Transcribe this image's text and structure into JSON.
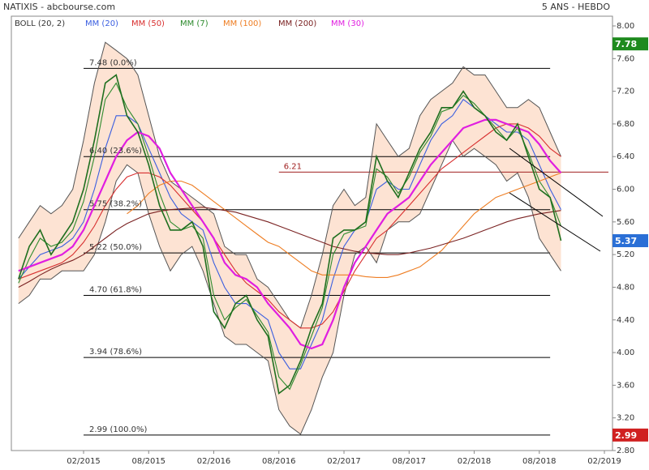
{
  "chart_data": {
    "type": "line",
    "title": "NATIXIS - abcbourse.com",
    "subtitle": "5 ANS - HEBDO",
    "x": [
      "08/2014",
      "09/2014",
      "10/2014",
      "11/2014",
      "12/2014",
      "01/2015",
      "02/2015",
      "03/2015",
      "04/2015",
      "05/2015",
      "06/2015",
      "07/2015",
      "08/2015",
      "09/2015",
      "10/2015",
      "11/2015",
      "12/2015",
      "01/2016",
      "02/2016",
      "03/2016",
      "04/2016",
      "05/2016",
      "06/2016",
      "07/2016",
      "08/2016",
      "09/2016",
      "10/2016",
      "11/2016",
      "12/2016",
      "01/2017",
      "02/2017",
      "03/2017",
      "04/2017",
      "05/2017",
      "06/2017",
      "07/2017",
      "08/2017",
      "09/2017",
      "10/2017",
      "11/2017",
      "12/2017",
      "01/2018",
      "02/2018",
      "03/2018",
      "04/2018",
      "05/2018",
      "06/2018",
      "07/2018",
      "08/2018",
      "09/2018",
      "10/2018"
    ],
    "xlim": [
      "07/2014",
      "03/2019"
    ],
    "xticks": [
      "02/2015",
      "08/2015",
      "02/2016",
      "08/2016",
      "02/2017",
      "08/2017",
      "02/2018",
      "08/2018",
      "02/2019"
    ],
    "ylim": [
      2.8,
      8
    ],
    "yticks": [
      {
        "value": 8,
        "label": "8.00"
      },
      {
        "value": 7.6,
        "label": "7.60"
      },
      {
        "value": 7.2,
        "label": "7.20"
      },
      {
        "value": 6.8,
        "label": "6.80"
      },
      {
        "value": 6.4,
        "label": "6.40"
      },
      {
        "value": 6,
        "label": "6.00"
      },
      {
        "value": 5.6,
        "label": "5.60"
      },
      {
        "value": 5.2,
        "label": "5.20"
      },
      {
        "value": 4.8,
        "label": "4.80"
      },
      {
        "value": 4.4,
        "label": "4.40"
      },
      {
        "value": 4,
        "label": "4.00"
      },
      {
        "value": 3.6,
        "label": "3.60"
      },
      {
        "value": 3.2,
        "label": "3.20"
      },
      {
        "value": 2.8,
        "label": "2.80"
      }
    ],
    "bollinger": {
      "name": "BOLL (20, 2)",
      "color": "#555555",
      "fill": "#fde3d3",
      "upper": [
        5.4,
        5.6,
        5.8,
        5.7,
        5.8,
        6.0,
        6.6,
        7.3,
        7.8,
        7.7,
        7.6,
        7.4,
        6.9,
        6.4,
        6.1,
        6.0,
        5.9,
        5.8,
        5.7,
        5.3,
        5.2,
        5.2,
        4.9,
        4.8,
        4.6,
        4.4,
        4.3,
        4.7,
        5.2,
        5.8,
        6.0,
        5.8,
        5.9,
        6.8,
        6.6,
        6.4,
        6.5,
        6.9,
        7.1,
        7.2,
        7.3,
        7.5,
        7.4,
        7.4,
        7.2,
        7.0,
        7.0,
        7.1,
        7.0,
        6.7,
        6.4
      ],
      "lower": [
        4.6,
        4.7,
        4.9,
        4.9,
        5.0,
        5.0,
        5.0,
        5.2,
        5.6,
        6.1,
        6.3,
        6.2,
        5.7,
        5.3,
        5.0,
        5.2,
        5.3,
        5.0,
        4.6,
        4.2,
        4.1,
        4.1,
        4.0,
        3.9,
        3.3,
        3.1,
        3.0,
        3.3,
        3.7,
        4.0,
        4.7,
        5.2,
        5.3,
        5.1,
        5.5,
        5.6,
        5.6,
        5.7,
        6.0,
        6.3,
        6.6,
        6.4,
        6.5,
        6.4,
        6.3,
        6.1,
        6.2,
        5.9,
        5.4,
        5.2,
        5.0
      ]
    },
    "series": [
      {
        "name": "MM (20)",
        "color": "#3a5ee0",
        "values": [
          4.9,
          5.05,
          5.2,
          5.25,
          5.3,
          5.4,
          5.6,
          6.0,
          6.5,
          6.9,
          6.9,
          6.8,
          6.5,
          6.2,
          5.9,
          5.7,
          5.6,
          5.5,
          5.1,
          4.8,
          4.6,
          4.6,
          4.5,
          4.4,
          4.0,
          3.8,
          3.8,
          4.1,
          4.4,
          4.9,
          5.3,
          5.5,
          5.6,
          6.0,
          6.1,
          6.0,
          6.0,
          6.3,
          6.6,
          6.8,
          6.9,
          7.1,
          7.0,
          6.9,
          6.8,
          6.7,
          6.7,
          6.6,
          6.3,
          6.0,
          5.75
        ]
      },
      {
        "name": "MM (50)",
        "color": "#d83030",
        "values": [
          4.9,
          4.95,
          5.0,
          5.05,
          5.1,
          5.2,
          5.35,
          5.55,
          5.8,
          6.0,
          6.15,
          6.2,
          6.2,
          6.15,
          6.05,
          5.9,
          5.75,
          5.6,
          5.4,
          5.2,
          5.0,
          4.85,
          4.75,
          4.65,
          4.5,
          4.4,
          4.3,
          4.3,
          4.35,
          4.5,
          4.75,
          5.0,
          5.2,
          5.4,
          5.5,
          5.65,
          5.8,
          5.95,
          6.1,
          6.25,
          6.35,
          6.45,
          6.55,
          6.65,
          6.75,
          6.8,
          6.8,
          6.75,
          6.65,
          6.5,
          6.4
        ]
      },
      {
        "name": "MM (7)",
        "color": "#2e8b2e",
        "values": [
          4.85,
          5.15,
          5.4,
          5.3,
          5.35,
          5.5,
          5.85,
          6.4,
          7.1,
          7.3,
          7.0,
          6.8,
          6.4,
          5.95,
          5.6,
          5.5,
          5.55,
          5.4,
          4.7,
          4.4,
          4.55,
          4.65,
          4.45,
          4.25,
          3.7,
          3.55,
          3.85,
          4.2,
          4.55,
          5.2,
          5.45,
          5.5,
          5.55,
          6.25,
          6.15,
          5.95,
          6.15,
          6.45,
          6.65,
          6.95,
          7.0,
          7.15,
          7.05,
          6.9,
          6.75,
          6.6,
          6.75,
          6.45,
          6.1,
          5.9,
          5.55
        ]
      },
      {
        "name": "MM (100)",
        "color": "#ee7d22",
        "values": [
          null,
          null,
          null,
          null,
          null,
          null,
          null,
          null,
          null,
          null,
          5.7,
          5.8,
          5.95,
          6.05,
          6.1,
          6.1,
          6.05,
          5.95,
          5.85,
          5.75,
          5.65,
          5.55,
          5.45,
          5.35,
          5.3,
          5.2,
          5.1,
          5.0,
          4.95,
          4.95,
          4.95,
          4.95,
          4.93,
          4.92,
          4.92,
          4.95,
          5.0,
          5.05,
          5.15,
          5.25,
          5.4,
          5.55,
          5.7,
          5.8,
          5.9,
          5.95,
          6.0,
          6.05,
          6.1,
          6.15,
          6.2
        ]
      },
      {
        "name": "MM (200)",
        "color": "#7a2222",
        "values": [
          4.8,
          4.87,
          4.95,
          5.02,
          5.08,
          5.13,
          5.2,
          5.3,
          5.4,
          5.5,
          5.58,
          5.64,
          5.7,
          5.73,
          5.75,
          5.76,
          5.77,
          5.78,
          5.76,
          5.74,
          5.72,
          5.68,
          5.64,
          5.6,
          5.55,
          5.5,
          5.45,
          5.4,
          5.35,
          5.3,
          5.27,
          5.24,
          5.22,
          5.21,
          5.2,
          5.2,
          5.22,
          5.25,
          5.28,
          5.32,
          5.36,
          5.4,
          5.45,
          5.5,
          5.55,
          5.6,
          5.64,
          5.67,
          5.7,
          5.72,
          5.74
        ]
      },
      {
        "name": "MM (30)",
        "color": "#e01ee0",
        "values": [
          5.0,
          5.05,
          5.1,
          5.15,
          5.2,
          5.3,
          5.5,
          5.8,
          6.1,
          6.4,
          6.6,
          6.7,
          6.65,
          6.5,
          6.2,
          6.0,
          5.8,
          5.6,
          5.4,
          5.1,
          4.95,
          4.9,
          4.8,
          4.6,
          4.45,
          4.3,
          4.1,
          4.05,
          4.1,
          4.4,
          4.8,
          5.1,
          5.3,
          5.5,
          5.7,
          5.8,
          5.9,
          6.1,
          6.3,
          6.45,
          6.6,
          6.75,
          6.8,
          6.85,
          6.85,
          6.8,
          6.75,
          6.7,
          6.55,
          6.35,
          6.2
        ]
      }
    ],
    "price": {
      "color": "#1f6f1f",
      "values": [
        4.9,
        5.3,
        5.5,
        5.2,
        5.4,
        5.6,
        6.0,
        6.6,
        7.3,
        7.4,
        6.9,
        6.7,
        6.3,
        5.8,
        5.5,
        5.5,
        5.6,
        5.3,
        4.5,
        4.3,
        4.6,
        4.7,
        4.4,
        4.2,
        3.5,
        3.6,
        3.9,
        4.3,
        4.6,
        5.4,
        5.5,
        5.5,
        5.6,
        6.4,
        6.1,
        5.9,
        6.2,
        6.5,
        6.7,
        7.0,
        7.0,
        7.2,
        7.0,
        6.9,
        6.7,
        6.6,
        6.8,
        6.4,
        6.0,
        5.9,
        5.37
      ]
    },
    "fibonacci": {
      "color": "#000000",
      "start": "02/2015",
      "end": "09/2018",
      "levels": [
        {
          "value": 7.48,
          "label": "7.48  (0.0%)"
        },
        {
          "value": 6.4,
          "label": "6.40  (23.6%)"
        },
        {
          "value": 5.75,
          "label": "5.75  (38.2%)"
        },
        {
          "value": 5.22,
          "label": "5.22  (50.0%)"
        },
        {
          "value": 4.7,
          "label": "4.70  (61.8%)"
        },
        {
          "value": 3.94,
          "label": "3.94  (78.6%)"
        },
        {
          "value": 2.99,
          "label": "2.99  (100.0%)"
        }
      ]
    },
    "annotations": [
      {
        "value": 6.21,
        "label": "6.21",
        "start": "08/2016",
        "color": "#a02020"
      }
    ],
    "badges": [
      {
        "value": 7.78,
        "color": "#1e8a1e"
      },
      {
        "value": 5.37,
        "color": "#2a6fd6"
      },
      {
        "value": 2.99,
        "color": "#d02020"
      }
    ]
  }
}
